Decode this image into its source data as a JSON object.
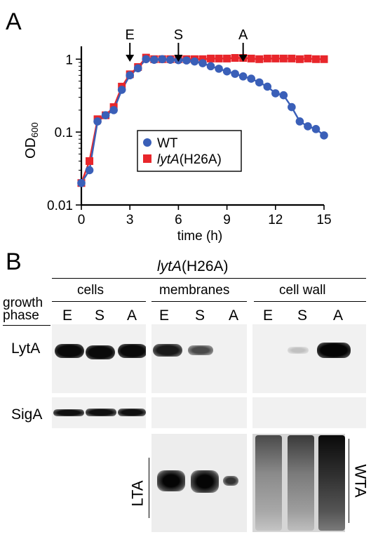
{
  "panel_a": {
    "letter": "A",
    "markers": [
      "E",
      "S",
      "A"
    ]
  },
  "chart_data": {
    "type": "scatter",
    "title": "",
    "xlabel": "time (h)",
    "ylabel": "OD600",
    "ylabel_main": "OD",
    "ylabel_sub": "600",
    "xlim": [
      0,
      15
    ],
    "ylim": [
      0.01,
      1.5
    ],
    "yscale": "log",
    "xticks": [
      0,
      3,
      6,
      9,
      12,
      15
    ],
    "yticks": [
      0.01,
      0.1,
      1
    ],
    "ytick_labels": [
      "0.01",
      "0.1",
      "1"
    ],
    "grid": false,
    "legend_position": "center-right",
    "phase_markers": [
      {
        "label": "E",
        "x": 3
      },
      {
        "label": "S",
        "x": 6
      },
      {
        "label": "A",
        "x": 10
      }
    ],
    "series": [
      {
        "name": "WT",
        "marker": "circle",
        "color": "#3a5fb8",
        "points": [
          [
            0,
            0.02
          ],
          [
            0.5,
            0.03
          ],
          [
            1,
            0.14
          ],
          [
            1.5,
            0.17
          ],
          [
            2,
            0.2
          ],
          [
            2.5,
            0.38
          ],
          [
            3,
            0.6
          ],
          [
            3.5,
            0.75
          ],
          [
            4,
            1.0
          ],
          [
            4.5,
            0.98
          ],
          [
            5,
            1.0
          ],
          [
            5.5,
            0.98
          ],
          [
            6,
            0.97
          ],
          [
            6.5,
            0.96
          ],
          [
            7,
            0.93
          ],
          [
            7.5,
            0.88
          ],
          [
            8,
            0.8
          ],
          [
            8.5,
            0.74
          ],
          [
            9,
            0.68
          ],
          [
            9.5,
            0.63
          ],
          [
            10,
            0.58
          ],
          [
            10.5,
            0.54
          ],
          [
            11,
            0.48
          ],
          [
            11.5,
            0.42
          ],
          [
            12,
            0.34
          ],
          [
            12.5,
            0.32
          ],
          [
            13,
            0.22
          ],
          [
            13.5,
            0.14
          ],
          [
            14,
            0.12
          ],
          [
            14.5,
            0.11
          ],
          [
            15,
            0.09
          ]
        ]
      },
      {
        "name": "lytA(H26A)",
        "name_italic": "lytA",
        "name_rest": "(H26A)",
        "marker": "square",
        "color": "#e8262b",
        "points": [
          [
            0,
            0.02
          ],
          [
            0.5,
            0.04
          ],
          [
            1,
            0.15
          ],
          [
            1.5,
            0.17
          ],
          [
            2,
            0.22
          ],
          [
            2.5,
            0.42
          ],
          [
            3,
            0.62
          ],
          [
            3.5,
            0.78
          ],
          [
            4,
            1.05
          ],
          [
            4.5,
            1.0
          ],
          [
            5,
            1.0
          ],
          [
            5.5,
            1.0
          ],
          [
            6,
            1.0
          ],
          [
            6.5,
            1.0
          ],
          [
            7,
            1.0
          ],
          [
            7.5,
            1.0
          ],
          [
            8,
            1.02
          ],
          [
            8.5,
            1.02
          ],
          [
            9,
            1.02
          ],
          [
            9.5,
            1.04
          ],
          [
            10,
            1.04
          ],
          [
            10.5,
            1.02
          ],
          [
            11,
            1.0
          ],
          [
            11.5,
            1.02
          ],
          [
            12,
            1.02
          ],
          [
            12.5,
            1.02
          ],
          [
            13,
            1.02
          ],
          [
            13.5,
            1.0
          ],
          [
            14,
            1.02
          ],
          [
            14.5,
            1.0
          ],
          [
            15,
            1.0
          ]
        ]
      }
    ]
  },
  "panel_b": {
    "letter": "B",
    "strain_italic": "lytA",
    "strain_rest": "(H26A)",
    "groups": [
      "cells",
      "membranes",
      "cell wall"
    ],
    "growth_phase_line1": "growth",
    "growth_phase_line2": "phase",
    "lanes": [
      "E",
      "S",
      "A",
      "E",
      "S",
      "A",
      "E",
      "S",
      "A"
    ],
    "row_labels": [
      "LytA",
      "SigA"
    ],
    "lta_label": "LTA",
    "wta_label": "WTA"
  }
}
